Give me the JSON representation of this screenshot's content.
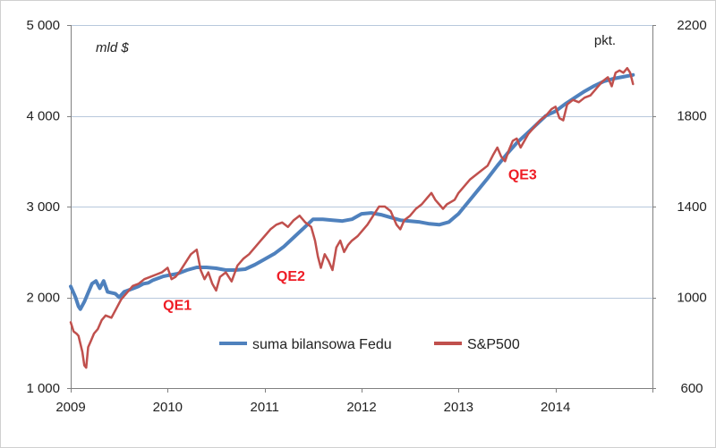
{
  "chart_data": {
    "type": "line",
    "xlabel": "",
    "x_ticks": [
      "2009",
      "2010",
      "2011",
      "2012",
      "2013",
      "2014"
    ],
    "xlim": [
      2009.0,
      2015.0
    ],
    "left_axis": {
      "unit": "mld $",
      "ylim": [
        1000,
        5000
      ],
      "ticks": [
        "1 000",
        "2 000",
        "3 000",
        "4 000",
        "5 000"
      ]
    },
    "right_axis": {
      "unit": "pkt.",
      "ylim": [
        600,
        2200
      ],
      "ticks": [
        "600",
        "1000",
        "1400",
        "1800",
        "2200"
      ]
    },
    "grid": "horizontal",
    "legend_position": "bottom-center",
    "series": [
      {
        "name": "suma bilansowa Fedu",
        "axis": "left",
        "color": "#4f81bd",
        "points": [
          [
            2009.0,
            2120
          ],
          [
            2009.05,
            2000
          ],
          [
            2009.08,
            1900
          ],
          [
            2009.1,
            1870
          ],
          [
            2009.14,
            1950
          ],
          [
            2009.18,
            2050
          ],
          [
            2009.22,
            2150
          ],
          [
            2009.26,
            2180
          ],
          [
            2009.3,
            2100
          ],
          [
            2009.34,
            2180
          ],
          [
            2009.38,
            2060
          ],
          [
            2009.42,
            2050
          ],
          [
            2009.46,
            2040
          ],
          [
            2009.5,
            2000
          ],
          [
            2009.55,
            2060
          ],
          [
            2009.6,
            2080
          ],
          [
            2009.65,
            2100
          ],
          [
            2009.7,
            2120
          ],
          [
            2009.75,
            2150
          ],
          [
            2009.8,
            2160
          ],
          [
            2009.85,
            2190
          ],
          [
            2009.9,
            2210
          ],
          [
            2009.95,
            2230
          ],
          [
            2010.0,
            2240
          ],
          [
            2010.1,
            2260
          ],
          [
            2010.2,
            2300
          ],
          [
            2010.3,
            2330
          ],
          [
            2010.4,
            2330
          ],
          [
            2010.5,
            2320
          ],
          [
            2010.6,
            2300
          ],
          [
            2010.7,
            2300
          ],
          [
            2010.8,
            2310
          ],
          [
            2010.9,
            2360
          ],
          [
            2011.0,
            2420
          ],
          [
            2011.1,
            2480
          ],
          [
            2011.2,
            2560
          ],
          [
            2011.3,
            2660
          ],
          [
            2011.4,
            2760
          ],
          [
            2011.5,
            2860
          ],
          [
            2011.6,
            2860
          ],
          [
            2011.7,
            2850
          ],
          [
            2011.8,
            2840
          ],
          [
            2011.9,
            2860
          ],
          [
            2012.0,
            2920
          ],
          [
            2012.1,
            2930
          ],
          [
            2012.2,
            2910
          ],
          [
            2012.3,
            2880
          ],
          [
            2012.4,
            2850
          ],
          [
            2012.5,
            2840
          ],
          [
            2012.6,
            2830
          ],
          [
            2012.7,
            2810
          ],
          [
            2012.8,
            2800
          ],
          [
            2012.9,
            2830
          ],
          [
            2013.0,
            2920
          ],
          [
            2013.1,
            3050
          ],
          [
            2013.2,
            3180
          ],
          [
            2013.3,
            3310
          ],
          [
            2013.4,
            3450
          ],
          [
            2013.5,
            3580
          ],
          [
            2013.6,
            3700
          ],
          [
            2013.7,
            3800
          ],
          [
            2013.8,
            3900
          ],
          [
            2013.9,
            4000
          ],
          [
            2014.0,
            4050
          ],
          [
            2014.1,
            4130
          ],
          [
            2014.2,
            4200
          ],
          [
            2014.3,
            4270
          ],
          [
            2014.4,
            4330
          ],
          [
            2014.5,
            4380
          ],
          [
            2014.6,
            4410
          ],
          [
            2014.7,
            4430
          ],
          [
            2014.8,
            4450
          ]
        ]
      },
      {
        "name": "S&P500",
        "axis": "right",
        "color": "#c0504d",
        "points": [
          [
            2009.0,
            890
          ],
          [
            2009.03,
            850
          ],
          [
            2009.06,
            840
          ],
          [
            2009.08,
            830
          ],
          [
            2009.12,
            760
          ],
          [
            2009.14,
            700
          ],
          [
            2009.16,
            690
          ],
          [
            2009.18,
            780
          ],
          [
            2009.2,
            800
          ],
          [
            2009.24,
            840
          ],
          [
            2009.28,
            860
          ],
          [
            2009.32,
            900
          ],
          [
            2009.36,
            920
          ],
          [
            2009.42,
            910
          ],
          [
            2009.47,
            950
          ],
          [
            2009.52,
            990
          ],
          [
            2009.58,
            1020
          ],
          [
            2009.64,
            1050
          ],
          [
            2009.7,
            1060
          ],
          [
            2009.76,
            1080
          ],
          [
            2009.82,
            1090
          ],
          [
            2009.88,
            1100
          ],
          [
            2009.94,
            1110
          ],
          [
            2010.0,
            1130
          ],
          [
            2010.04,
            1080
          ],
          [
            2010.08,
            1090
          ],
          [
            2010.12,
            1110
          ],
          [
            2010.18,
            1150
          ],
          [
            2010.24,
            1190
          ],
          [
            2010.3,
            1210
          ],
          [
            2010.34,
            1120
          ],
          [
            2010.38,
            1080
          ],
          [
            2010.42,
            1110
          ],
          [
            2010.46,
            1060
          ],
          [
            2010.5,
            1030
          ],
          [
            2010.54,
            1090
          ],
          [
            2010.6,
            1110
          ],
          [
            2010.66,
            1070
          ],
          [
            2010.72,
            1140
          ],
          [
            2010.78,
            1170
          ],
          [
            2010.84,
            1190
          ],
          [
            2010.9,
            1220
          ],
          [
            2010.96,
            1250
          ],
          [
            2011.0,
            1270
          ],
          [
            2011.06,
            1300
          ],
          [
            2011.12,
            1320
          ],
          [
            2011.18,
            1330
          ],
          [
            2011.24,
            1310
          ],
          [
            2011.3,
            1340
          ],
          [
            2011.36,
            1360
          ],
          [
            2011.42,
            1330
          ],
          [
            2011.48,
            1310
          ],
          [
            2011.52,
            1250
          ],
          [
            2011.55,
            1180
          ],
          [
            2011.58,
            1130
          ],
          [
            2011.62,
            1190
          ],
          [
            2011.66,
            1160
          ],
          [
            2011.7,
            1120
          ],
          [
            2011.74,
            1220
          ],
          [
            2011.78,
            1250
          ],
          [
            2011.82,
            1200
          ],
          [
            2011.86,
            1230
          ],
          [
            2011.9,
            1250
          ],
          [
            2011.96,
            1270
          ],
          [
            2012.0,
            1290
          ],
          [
            2012.06,
            1320
          ],
          [
            2012.12,
            1360
          ],
          [
            2012.18,
            1400
          ],
          [
            2012.24,
            1400
          ],
          [
            2012.3,
            1380
          ],
          [
            2012.36,
            1320
          ],
          [
            2012.4,
            1300
          ],
          [
            2012.44,
            1340
          ],
          [
            2012.5,
            1360
          ],
          [
            2012.56,
            1390
          ],
          [
            2012.62,
            1410
          ],
          [
            2012.68,
            1440
          ],
          [
            2012.72,
            1460
          ],
          [
            2012.76,
            1430
          ],
          [
            2012.8,
            1410
          ],
          [
            2012.84,
            1390
          ],
          [
            2012.88,
            1410
          ],
          [
            2012.92,
            1420
          ],
          [
            2012.96,
            1430
          ],
          [
            2013.0,
            1460
          ],
          [
            2013.06,
            1490
          ],
          [
            2013.12,
            1520
          ],
          [
            2013.18,
            1540
          ],
          [
            2013.24,
            1560
          ],
          [
            2013.3,
            1580
          ],
          [
            2013.36,
            1630
          ],
          [
            2013.4,
            1660
          ],
          [
            2013.44,
            1620
          ],
          [
            2013.48,
            1600
          ],
          [
            2013.52,
            1650
          ],
          [
            2013.56,
            1690
          ],
          [
            2013.6,
            1700
          ],
          [
            2013.64,
            1660
          ],
          [
            2013.68,
            1690
          ],
          [
            2013.72,
            1720
          ],
          [
            2013.78,
            1750
          ],
          [
            2013.84,
            1780
          ],
          [
            2013.9,
            1800
          ],
          [
            2013.96,
            1830
          ],
          [
            2014.0,
            1840
          ],
          [
            2014.04,
            1790
          ],
          [
            2014.08,
            1780
          ],
          [
            2014.12,
            1850
          ],
          [
            2014.18,
            1870
          ],
          [
            2014.24,
            1860
          ],
          [
            2014.3,
            1880
          ],
          [
            2014.36,
            1890
          ],
          [
            2014.42,
            1920
          ],
          [
            2014.48,
            1950
          ],
          [
            2014.54,
            1970
          ],
          [
            2014.58,
            1930
          ],
          [
            2014.62,
            1990
          ],
          [
            2014.66,
            2000
          ],
          [
            2014.7,
            1990
          ],
          [
            2014.74,
            2010
          ],
          [
            2014.77,
            1990
          ],
          [
            2014.8,
            1940
          ]
        ]
      }
    ],
    "annotations": [
      {
        "text": "QE1",
        "x": 2010.1,
        "y": 1860,
        "axis": "left"
      },
      {
        "text": "QE2",
        "x": 2011.27,
        "y": 2180,
        "axis": "left"
      },
      {
        "text": "QE3",
        "x": 2013.66,
        "y": 3300,
        "axis": "left"
      }
    ]
  }
}
